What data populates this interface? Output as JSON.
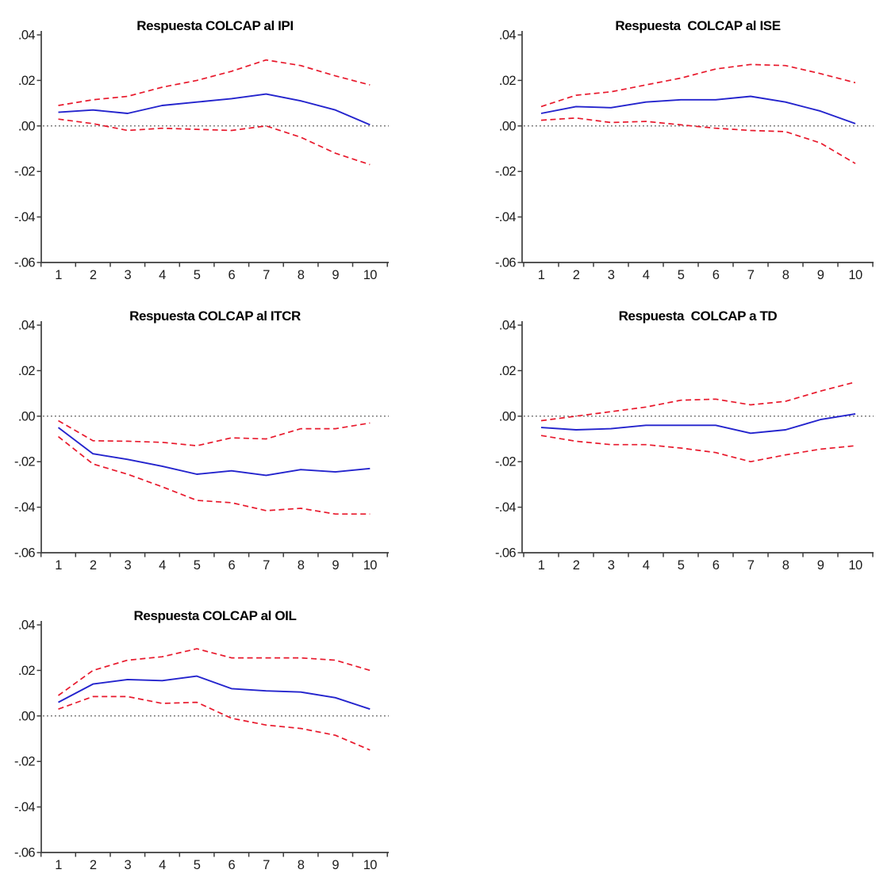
{
  "figure": {
    "background": "#ffffff",
    "description": "Impulse response functions of COLCAP with confidence bands"
  },
  "style": {
    "response_color": "#2424cd",
    "band_color": "#e8192c",
    "zero_line_color": "#707070",
    "axis_color": "#3d3d3d",
    "text_color": "#1c1c1c",
    "title_color": "#000000"
  },
  "chart_data": [
    {
      "type": "line",
      "title": "Respuesta COLCAP al IPI",
      "x": [
        1,
        2,
        3,
        4,
        5,
        6,
        7,
        8,
        9,
        10
      ],
      "ylim": [
        -0.06,
        0.04
      ],
      "y_ticks": [
        0.04,
        0.02,
        0.0,
        -0.02,
        -0.04,
        -0.06
      ],
      "y_tick_labels": [
        ".04",
        ".02",
        ".00",
        "-.02",
        "-.04",
        "-.06"
      ],
      "zero_line": true,
      "legend": "none",
      "series": [
        {
          "name": "response",
          "color": "#2424cd",
          "style": "solid",
          "values": [
            0.006,
            0.007,
            0.0055,
            0.009,
            0.0105,
            0.012,
            0.014,
            0.011,
            0.007,
            0.0005
          ]
        },
        {
          "name": "upper-band",
          "color": "#e8192c",
          "style": "dashed",
          "values": [
            0.009,
            0.0115,
            0.013,
            0.017,
            0.02,
            0.024,
            0.029,
            0.0265,
            0.022,
            0.018
          ]
        },
        {
          "name": "lower-band",
          "color": "#e8192c",
          "style": "dashed",
          "values": [
            0.003,
            0.001,
            -0.002,
            -0.001,
            -0.0015,
            -0.002,
            0.0,
            -0.005,
            -0.012,
            -0.017
          ]
        }
      ]
    },
    {
      "type": "line",
      "title": "Respuesta  COLCAP al ISE",
      "x": [
        1,
        2,
        3,
        4,
        5,
        6,
        7,
        8,
        9,
        10
      ],
      "ylim": [
        -0.06,
        0.04
      ],
      "y_ticks": [
        0.04,
        0.02,
        0.0,
        -0.02,
        -0.04,
        -0.06
      ],
      "y_tick_labels": [
        ".04",
        ".02",
        ".00",
        "-.02",
        "-.04",
        "-.06"
      ],
      "zero_line": true,
      "legend": "none",
      "series": [
        {
          "name": "response",
          "color": "#2424cd",
          "style": "solid",
          "values": [
            0.0055,
            0.0085,
            0.008,
            0.0105,
            0.0115,
            0.0115,
            0.013,
            0.0105,
            0.0065,
            0.001
          ]
        },
        {
          "name": "upper-band",
          "color": "#e8192c",
          "style": "dashed",
          "values": [
            0.0085,
            0.0135,
            0.015,
            0.018,
            0.021,
            0.025,
            0.027,
            0.0265,
            0.023,
            0.019
          ]
        },
        {
          "name": "lower-band",
          "color": "#e8192c",
          "style": "dashed",
          "values": [
            0.0025,
            0.0035,
            0.0015,
            0.002,
            0.0005,
            -0.001,
            -0.002,
            -0.0025,
            -0.0075,
            -0.0165
          ]
        }
      ]
    },
    {
      "type": "line",
      "title": "Respuesta COLCAP al ITCR",
      "x": [
        1,
        2,
        3,
        4,
        5,
        6,
        7,
        8,
        9,
        10
      ],
      "ylim": [
        -0.06,
        0.04
      ],
      "y_ticks": [
        0.04,
        0.02,
        0.0,
        -0.02,
        -0.04,
        -0.06
      ],
      "y_tick_labels": [
        ".04",
        ".02",
        ".00",
        "-.02",
        "-.04",
        "-.06"
      ],
      "zero_line": true,
      "legend": "none",
      "series": [
        {
          "name": "response",
          "color": "#2424cd",
          "style": "solid",
          "values": [
            -0.005,
            -0.0165,
            -0.019,
            -0.022,
            -0.0255,
            -0.024,
            -0.026,
            -0.0235,
            -0.0245,
            -0.023
          ]
        },
        {
          "name": "upper-band",
          "color": "#e8192c",
          "style": "dashed",
          "values": [
            -0.002,
            -0.0108,
            -0.011,
            -0.0115,
            -0.013,
            -0.0095,
            -0.01,
            -0.0055,
            -0.0055,
            -0.003
          ]
        },
        {
          "name": "lower-band",
          "color": "#e8192c",
          "style": "dashed",
          "values": [
            -0.009,
            -0.021,
            -0.0255,
            -0.031,
            -0.037,
            -0.038,
            -0.0415,
            -0.0405,
            -0.043,
            -0.043
          ]
        }
      ]
    },
    {
      "type": "line",
      "title": "Respuesta  COLCAP a TD",
      "x": [
        1,
        2,
        3,
        4,
        5,
        6,
        7,
        8,
        9,
        10
      ],
      "ylim": [
        -0.06,
        0.04
      ],
      "y_ticks": [
        0.04,
        0.02,
        0.0,
        -0.02,
        -0.04,
        -0.06
      ],
      "y_tick_labels": [
        ".04",
        ".02",
        ".00",
        "-.02",
        "-.04",
        "-.06"
      ],
      "zero_line": true,
      "legend": "none",
      "series": [
        {
          "name": "response",
          "color": "#2424cd",
          "style": "solid",
          "values": [
            -0.005,
            -0.006,
            -0.0055,
            -0.004,
            -0.004,
            -0.004,
            -0.0075,
            -0.006,
            -0.0015,
            0.001
          ]
        },
        {
          "name": "upper-band",
          "color": "#e8192c",
          "style": "dashed",
          "values": [
            -0.002,
            0.0,
            0.002,
            0.004,
            0.007,
            0.0075,
            0.005,
            0.0065,
            0.011,
            0.015
          ]
        },
        {
          "name": "lower-band",
          "color": "#e8192c",
          "style": "dashed",
          "values": [
            -0.0085,
            -0.011,
            -0.0125,
            -0.0125,
            -0.014,
            -0.016,
            -0.02,
            -0.017,
            -0.0145,
            -0.013
          ]
        }
      ]
    },
    {
      "type": "line",
      "title": "Respuesta COLCAP al OIL",
      "x": [
        1,
        2,
        3,
        4,
        5,
        6,
        7,
        8,
        9,
        10
      ],
      "ylim": [
        -0.06,
        0.04
      ],
      "y_ticks": [
        0.04,
        0.02,
        0.0,
        -0.02,
        -0.04,
        -0.06
      ],
      "y_tick_labels": [
        ".04",
        ".02",
        ".00",
        "-.02",
        "-.04",
        "-.06"
      ],
      "zero_line": true,
      "legend": "none",
      "series": [
        {
          "name": "response",
          "color": "#2424cd",
          "style": "solid",
          "values": [
            0.006,
            0.014,
            0.016,
            0.0155,
            0.0175,
            0.012,
            0.011,
            0.0105,
            0.008,
            0.003
          ]
        },
        {
          "name": "upper-band",
          "color": "#e8192c",
          "style": "dashed",
          "values": [
            0.009,
            0.02,
            0.0245,
            0.026,
            0.0295,
            0.0255,
            0.0255,
            0.0255,
            0.0245,
            0.02
          ]
        },
        {
          "name": "lower-band",
          "color": "#e8192c",
          "style": "dashed",
          "values": [
            0.003,
            0.0085,
            0.0085,
            0.0055,
            0.006,
            -0.001,
            -0.004,
            -0.0055,
            -0.0085,
            -0.015
          ]
        }
      ]
    }
  ]
}
